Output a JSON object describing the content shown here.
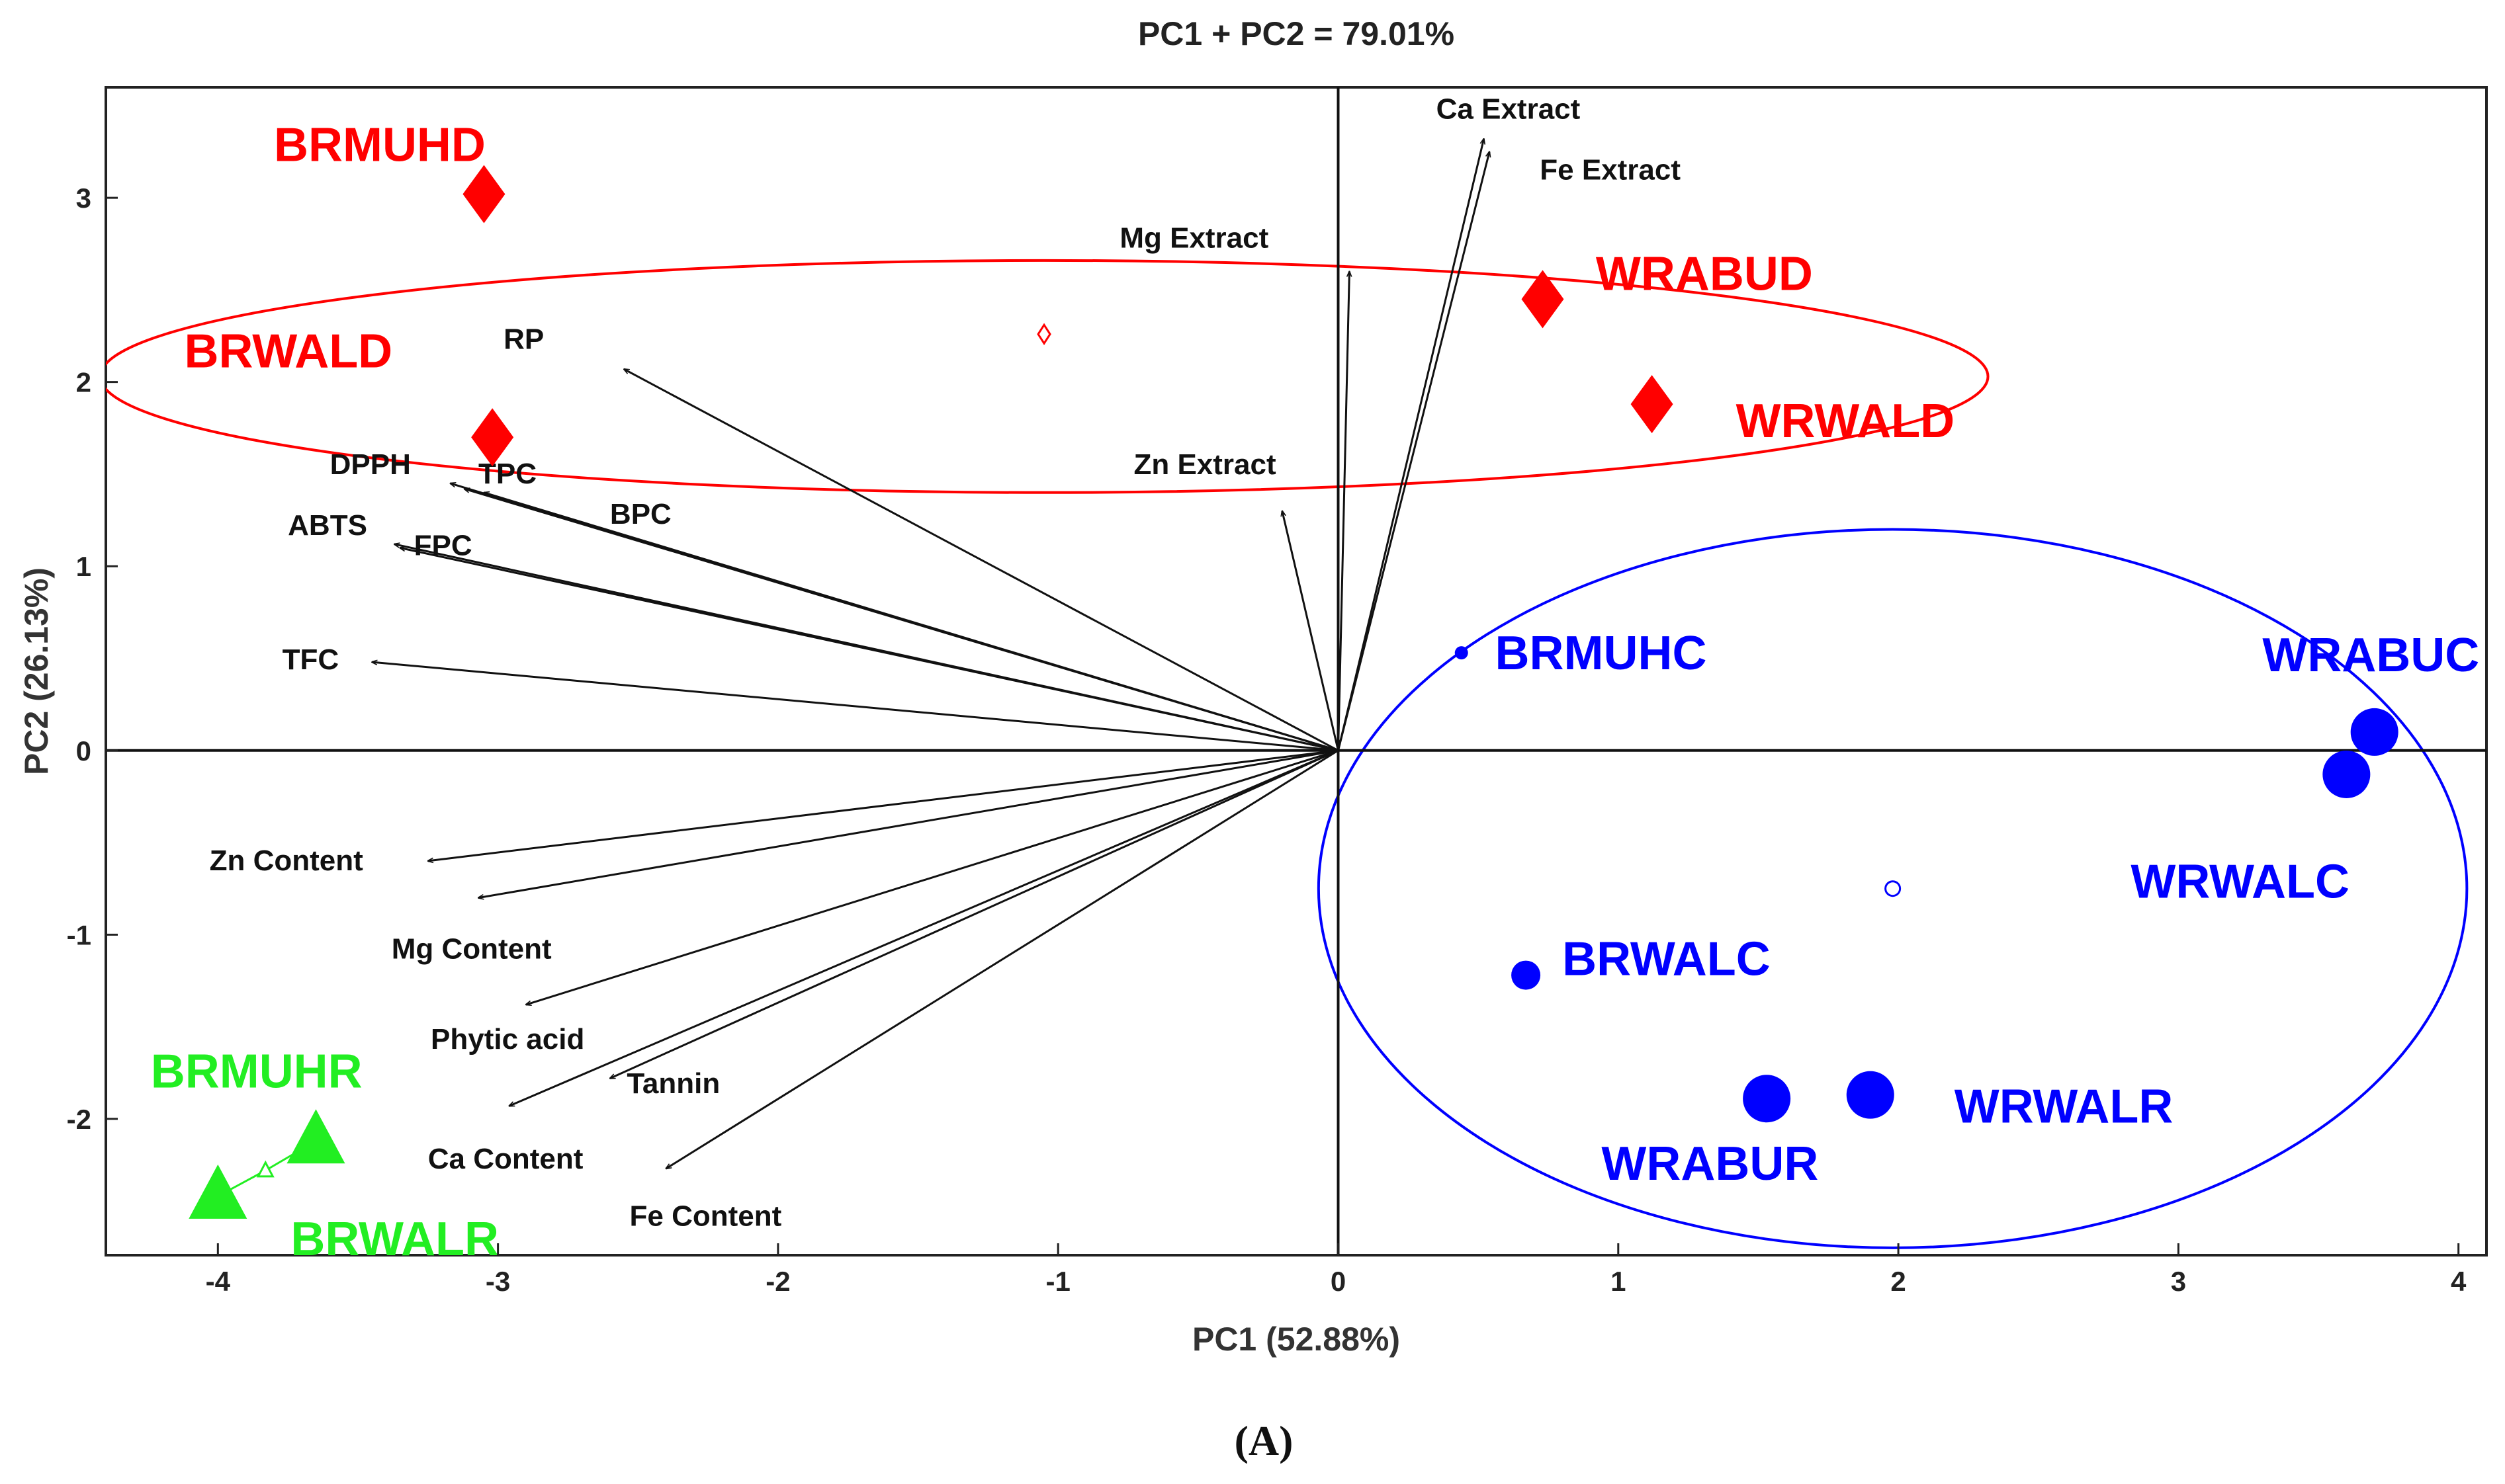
{
  "chart_data": {
    "type": "scatter",
    "subtype": "pca-biplot",
    "title": "PC1 + PC2 = 79.01%",
    "xlabel": "PC1 (52.88%)",
    "ylabel": "PC2 (26.13%)",
    "caption": "(A)",
    "xlim": [
      -4.4,
      4.1
    ],
    "ylim": [
      -2.74,
      3.6
    ],
    "xticks": [
      -4,
      -3,
      -2,
      -1,
      0,
      1,
      2,
      3,
      4
    ],
    "yticks": [
      -2,
      -1,
      0,
      1,
      2,
      3
    ],
    "zero_lines": true,
    "colors": {
      "red": "#ff0000",
      "blue": "#0000ff",
      "green": "#22ee22",
      "loading": "#111111"
    },
    "loadings": [
      {
        "name": "Ca Extract",
        "x": 0.52,
        "y": 3.32
      },
      {
        "name": "Fe Extract",
        "x": 0.54,
        "y": 3.25
      },
      {
        "name": "Mg Extract",
        "x": 0.04,
        "y": 2.6
      },
      {
        "name": "Zn Extract",
        "x": -0.2,
        "y": 1.3
      },
      {
        "name": "RP",
        "x": -2.55,
        "y": 2.07
      },
      {
        "name": "DPPH",
        "x": -3.17,
        "y": 1.45
      },
      {
        "name": "TPC",
        "x": -3.12,
        "y": 1.42
      },
      {
        "name": "BPC",
        "x": -3.05,
        "y": 1.4
      },
      {
        "name": "FPC",
        "x": -3.35,
        "y": 1.1
      },
      {
        "name": "ABTS",
        "x": -3.37,
        "y": 1.12
      },
      {
        "name": "TFC",
        "x": -3.45,
        "y": 0.48
      },
      {
        "name": "Zn Content",
        "x": -3.25,
        "y": -0.6
      },
      {
        "name": "Mg Content",
        "x": -3.07,
        "y": -0.8
      },
      {
        "name": "Phytic acid",
        "x": -2.9,
        "y": -1.38
      },
      {
        "name": "Tannin",
        "x": -2.6,
        "y": -1.78
      },
      {
        "name": "Ca Content",
        "x": -2.96,
        "y": -1.93
      },
      {
        "name": "Fe Content",
        "x": -2.4,
        "y": -2.27
      }
    ],
    "groups": [
      {
        "name": "red-group",
        "color": "red",
        "marker": "diamond",
        "centroid": {
          "x": -1.05,
          "y": 2.26
        },
        "ellipse": {
          "cx": -1.05,
          "cy": 2.03,
          "rx": 3.37,
          "ry": 0.63,
          "angle": 0
        },
        "points": [
          {
            "label": "BRMUHD",
            "x": -3.05,
            "y": 3.02
          },
          {
            "label": "BRWALD",
            "x": -3.02,
            "y": 1.7
          },
          {
            "label": "WRABUD",
            "x": 0.73,
            "y": 2.45
          },
          {
            "label": "WRWALD",
            "x": 1.12,
            "y": 1.88
          }
        ]
      },
      {
        "name": "blue-group",
        "color": "blue",
        "marker": "circle",
        "centroid": {
          "x": 1.98,
          "y": -0.75
        },
        "ellipse": {
          "cx": 1.98,
          "cy": -0.75,
          "rx": 2.05,
          "ry": 1.95,
          "angle": 0
        },
        "points": [
          {
            "label": "BRMUHC",
            "x": 0.44,
            "y": 0.53,
            "size": "small"
          },
          {
            "label": "WRABUC",
            "x": 3.7,
            "y": 0.1,
            "size": "large"
          },
          {
            "label": "WRWALC",
            "x": 3.6,
            "y": -0.13,
            "size": "large"
          },
          {
            "label": "BRWALC",
            "x": 0.67,
            "y": -1.22,
            "size": "medium"
          },
          {
            "label": "WRABUR",
            "x": 1.53,
            "y": -1.89,
            "size": "large"
          },
          {
            "label": "WRWALR",
            "x": 1.9,
            "y": -1.87,
            "size": "large"
          }
        ]
      },
      {
        "name": "green-group",
        "color": "green",
        "marker": "triangle",
        "centroid": {
          "x": -3.83,
          "y": -2.28
        },
        "points": [
          {
            "label": "BRMUHR",
            "x": -3.65,
            "y": -2.12
          },
          {
            "label": "BRWALR",
            "x": -4.0,
            "y": -2.42
          }
        ]
      }
    ]
  }
}
